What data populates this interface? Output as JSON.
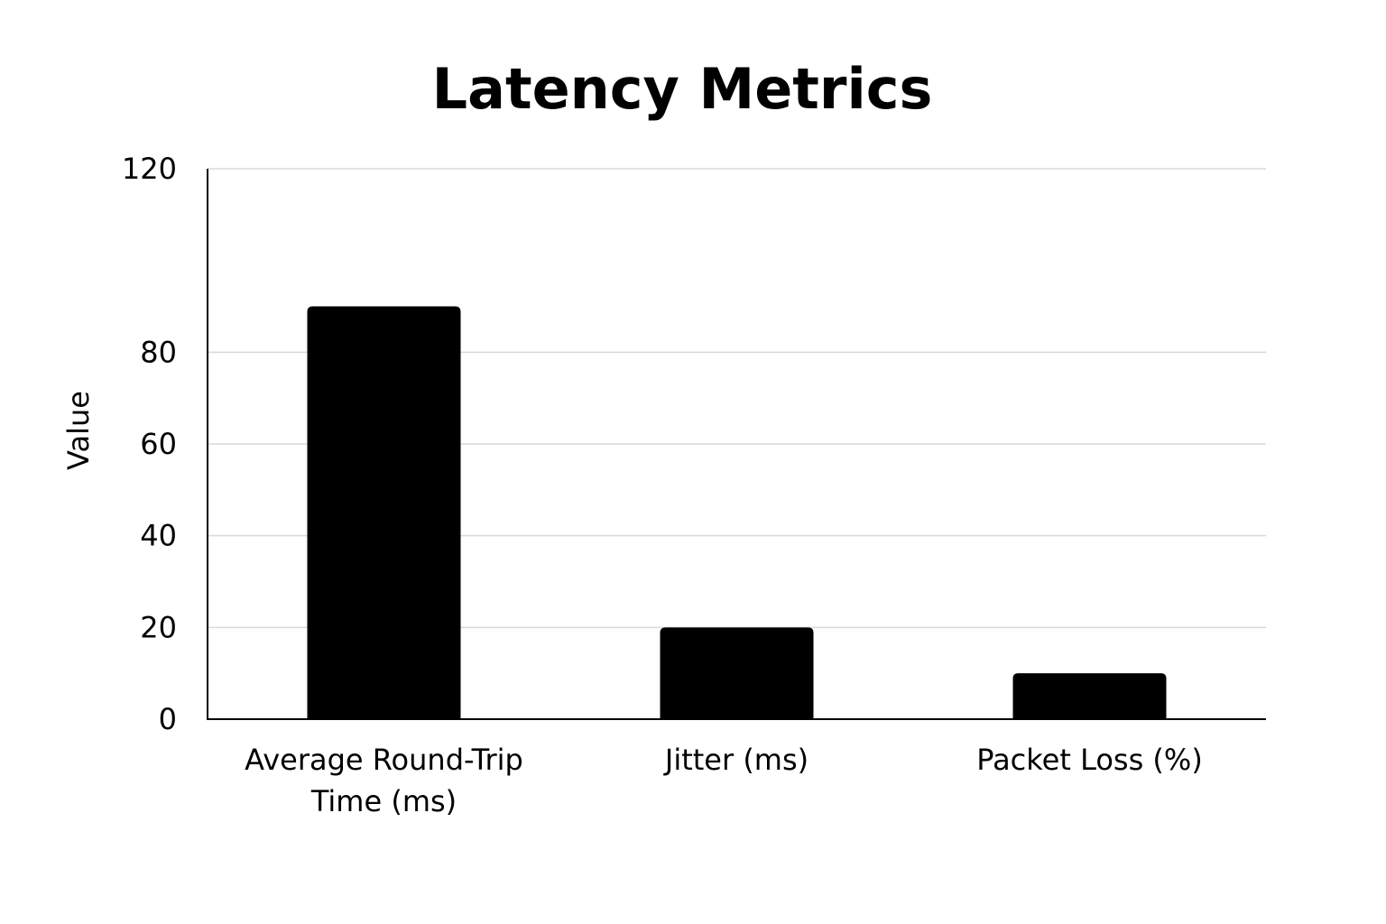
{
  "chart_data": {
    "type": "bar",
    "title": "Latency Metrics",
    "xlabel": "",
    "ylabel": "Value",
    "categories": [
      [
        "Average Round-Trip",
        "Time (ms)"
      ],
      [
        "Jitter (ms)"
      ],
      [
        "Packet Loss (%)"
      ]
    ],
    "values": [
      90,
      20,
      10
    ],
    "ylim": [
      0,
      120
    ],
    "yticks": [
      0,
      20,
      40,
      60,
      80,
      120
    ],
    "grid": true,
    "legend": "none",
    "bar_color": "#000000",
    "grid_color": "#d9d9d9"
  }
}
